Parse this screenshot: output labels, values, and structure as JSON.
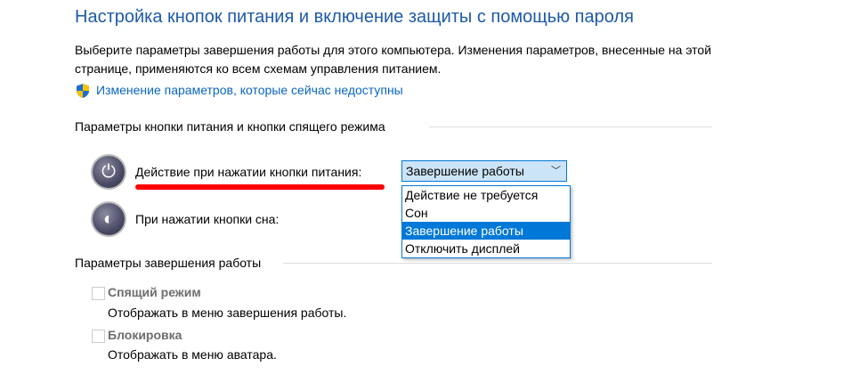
{
  "title": "Настройка кнопок питания и включение защиты с помощью пароля",
  "description": "Выберите параметры завершения работы для этого компьютера. Изменения параметров, внесенные на этой странице, применяются ко всем схемам управления питанием.",
  "admin_link": "Изменение параметров, которые сейчас недоступны",
  "buttons_group": {
    "title": "Параметры кнопки питания и кнопки спящего режима",
    "power_label": "Действие при нажатии кнопки питания:",
    "power_value": "Завершение работы",
    "sleep_label": "При нажатии кнопки сна:",
    "options": [
      "Действие не требуется",
      "Сон",
      "Завершение работы",
      "Отключить дисплей"
    ],
    "selected_index": 2
  },
  "shutdown_group": {
    "title": "Параметры завершения работы",
    "items": [
      {
        "label": "Спящий режим",
        "description": "Отображать в меню завершения работы.",
        "checked": false
      },
      {
        "label": "Блокировка",
        "description": "Отображать в меню аватара.",
        "checked": false
      }
    ]
  },
  "colors": {
    "title": "#1e5aa8",
    "link": "#0a66c2",
    "accent": "#0078d7",
    "annotation": "#ff0000"
  }
}
